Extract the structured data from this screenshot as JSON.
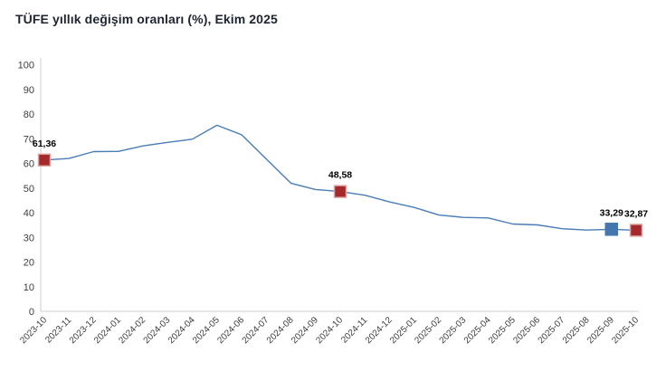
{
  "title": "TÜFE yıllık değişim oranları (%), Ekim 2025",
  "chart_data": {
    "type": "line",
    "title": "TÜFE yıllık değişim oranları (%), Ekim 2025",
    "x": [
      "2023-10",
      "2023-11",
      "2023-12",
      "2024-01",
      "2024-02",
      "2024-03",
      "2024-04",
      "2024-05",
      "2024-06",
      "2024-07",
      "2024-08",
      "2024-09",
      "2024-10",
      "2024-11",
      "2024-12",
      "2025-01",
      "2025-02",
      "2025-03",
      "2025-04",
      "2025-05",
      "2025-06",
      "2025-07",
      "2025-08",
      "2025-09",
      "2025-10"
    ],
    "values": [
      61.36,
      61.98,
      64.77,
      64.86,
      67.07,
      68.5,
      69.8,
      75.45,
      71.6,
      61.78,
      51.97,
      49.38,
      48.58,
      47.09,
      44.38,
      42.12,
      39.05,
      38.1,
      37.86,
      35.41,
      35.05,
      33.52,
      32.95,
      33.29,
      32.87
    ],
    "ylabel": "",
    "xlabel": "",
    "ylim": [
      0,
      100
    ],
    "ytick_step": 10,
    "grid": false,
    "legend": "none",
    "highlighted_points": [
      {
        "x": "2023-10",
        "label": "61,36",
        "color": "red"
      },
      {
        "x": "2024-10",
        "label": "48,58",
        "color": "red"
      },
      {
        "x": "2025-09",
        "label": "33,29",
        "color": "blue"
      },
      {
        "x": "2025-10",
        "label": "32,87",
        "color": "red"
      }
    ],
    "colors": {
      "line": "#4a7cb5",
      "marker_red": "#a3292a",
      "marker_red_border": "#dda4a2",
      "marker_blue": "#4377ad",
      "axis_line": "#cfcfcf",
      "tick_label": "#3d3d3d",
      "value_label": "#000000",
      "title": "#1e2430"
    }
  }
}
